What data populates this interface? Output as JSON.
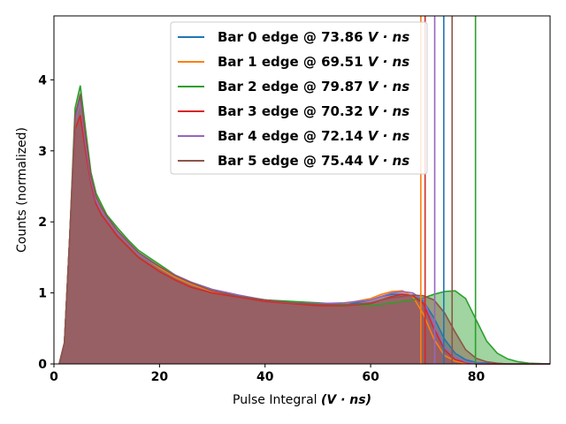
{
  "chart_data": {
    "type": "area",
    "xlabel_prefix": "Pulse Integral ",
    "xlabel_unit": "(V · ns)",
    "ylabel": "Counts (normalized)",
    "xlim": [
      0,
      94
    ],
    "ylim": [
      0,
      4.9
    ],
    "xticks": [
      0,
      20,
      40,
      60,
      80
    ],
    "yticks": [
      0,
      1,
      2,
      3,
      4
    ],
    "grid": false,
    "legend_position": "top-right",
    "x": [
      1,
      2,
      3,
      4,
      5,
      6,
      7,
      8,
      9,
      10,
      12,
      14,
      16,
      18,
      20,
      23,
      26,
      30,
      35,
      40,
      45,
      50,
      55,
      60,
      62,
      64,
      66,
      68,
      70,
      72,
      74,
      76,
      78,
      80,
      82,
      84,
      86,
      88,
      90,
      94
    ],
    "series": [
      {
        "name": "Bar 0 edge @ 73.86 V · ns",
        "label": "Bar 0 edge @ 73.86",
        "color": "#1f77b4",
        "edge": 73.86,
        "values": [
          0,
          0.3,
          1.8,
          3.4,
          3.75,
          3.1,
          2.6,
          2.3,
          2.15,
          2.05,
          1.85,
          1.7,
          1.55,
          1.45,
          1.35,
          1.22,
          1.12,
          1.02,
          0.95,
          0.9,
          0.86,
          0.84,
          0.83,
          0.9,
          0.95,
          0.98,
          0.98,
          0.96,
          0.88,
          0.65,
          0.35,
          0.15,
          0.06,
          0.02,
          0.01,
          0,
          0,
          0,
          0,
          0
        ]
      },
      {
        "name": "Bar 1 edge @ 69.51 V · ns",
        "label": "Bar 1 edge @ 69.51",
        "color": "#ff7f0e",
        "edge": 69.51,
        "values": [
          0,
          0.3,
          1.8,
          3.4,
          3.7,
          3.1,
          2.6,
          2.3,
          2.15,
          2.05,
          1.85,
          1.7,
          1.55,
          1.45,
          1.35,
          1.22,
          1.12,
          1.02,
          0.95,
          0.9,
          0.86,
          0.85,
          0.85,
          0.92,
          0.98,
          1.02,
          1.03,
          0.95,
          0.7,
          0.35,
          0.12,
          0.04,
          0.01,
          0,
          0,
          0,
          0,
          0,
          0,
          0
        ]
      },
      {
        "name": "Bar 2 edge @ 79.87 V · ns",
        "label": "Bar 2 edge @ 79.87",
        "color": "#2ca02c",
        "edge": 79.87,
        "values": [
          0,
          0.3,
          1.8,
          3.6,
          3.92,
          3.3,
          2.7,
          2.4,
          2.25,
          2.1,
          1.92,
          1.75,
          1.6,
          1.5,
          1.4,
          1.25,
          1.15,
          1.05,
          0.96,
          0.9,
          0.88,
          0.86,
          0.84,
          0.82,
          0.84,
          0.86,
          0.88,
          0.9,
          0.93,
          0.98,
          1.02,
          1.03,
          0.92,
          0.62,
          0.32,
          0.15,
          0.07,
          0.03,
          0.01,
          0
        ]
      },
      {
        "name": "Bar 3 edge @ 70.32 V · ns",
        "label": "Bar 3 edge @ 70.32",
        "color": "#d62728",
        "edge": 70.32,
        "values": [
          0,
          0.3,
          1.8,
          3.3,
          3.5,
          3.0,
          2.55,
          2.25,
          2.1,
          2.0,
          1.8,
          1.65,
          1.5,
          1.4,
          1.3,
          1.18,
          1.08,
          1.0,
          0.94,
          0.88,
          0.85,
          0.82,
          0.82,
          0.85,
          0.9,
          0.95,
          0.98,
          0.96,
          0.85,
          0.5,
          0.2,
          0.06,
          0.02,
          0,
          0,
          0,
          0,
          0,
          0,
          0
        ]
      },
      {
        "name": "Bar 4 edge @ 72.14 V · ns",
        "label": "Bar 4 edge @ 72.14",
        "color": "#9467bd",
        "edge": 72.14,
        "values": [
          0,
          0.3,
          1.8,
          3.4,
          3.7,
          3.1,
          2.6,
          2.3,
          2.15,
          2.05,
          1.85,
          1.7,
          1.55,
          1.45,
          1.37,
          1.25,
          1.15,
          1.05,
          0.97,
          0.9,
          0.86,
          0.85,
          0.86,
          0.9,
          0.95,
          1.0,
          1.02,
          1.0,
          0.9,
          0.55,
          0.25,
          0.1,
          0.03,
          0.01,
          0,
          0,
          0,
          0,
          0,
          0
        ]
      },
      {
        "name": "Bar 5 edge @ 75.44 V · ns",
        "label": "Bar 5 edge @ 75.44",
        "color": "#8c564b",
        "edge": 75.44,
        "values": [
          0,
          0.3,
          1.8,
          3.5,
          3.8,
          3.2,
          2.65,
          2.35,
          2.2,
          2.08,
          1.88,
          1.72,
          1.57,
          1.47,
          1.37,
          1.24,
          1.14,
          1.03,
          0.95,
          0.9,
          0.86,
          0.84,
          0.83,
          0.86,
          0.9,
          0.93,
          0.95,
          0.97,
          0.96,
          0.9,
          0.72,
          0.45,
          0.2,
          0.08,
          0.03,
          0.01,
          0,
          0,
          0,
          0
        ]
      }
    ]
  }
}
